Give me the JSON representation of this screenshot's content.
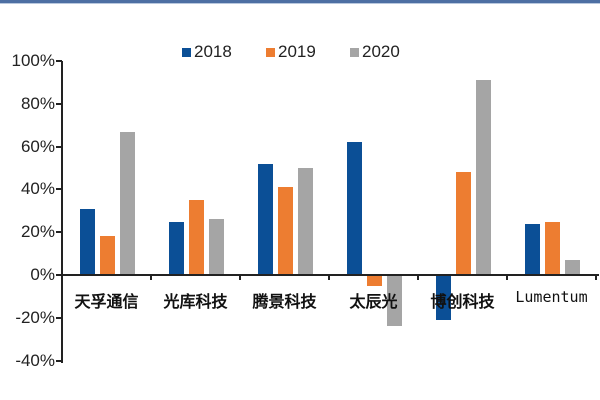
{
  "chart_data": {
    "type": "bar",
    "title": "",
    "xlabel": "",
    "ylabel": "",
    "ylim": [
      -0.4,
      1.0
    ],
    "yticks": [
      "100%",
      "80%",
      "60%",
      "40%",
      "20%",
      "0%",
      "-20%",
      "-40%"
    ],
    "ytick_values": [
      1.0,
      0.8,
      0.6,
      0.4,
      0.2,
      0.0,
      -0.2,
      -0.4
    ],
    "categories": [
      "天孚通信",
      "光库科技",
      "腾景科技",
      "太辰光",
      "博创科技",
      "Lumentum"
    ],
    "series": [
      {
        "name": "2018",
        "color": "#0b4f96",
        "values": [
          0.31,
          0.25,
          0.52,
          0.62,
          -0.21,
          0.24
        ]
      },
      {
        "name": "2019",
        "color": "#ed7d31",
        "values": [
          0.18,
          0.35,
          0.41,
          -0.05,
          0.48,
          0.25
        ]
      },
      {
        "name": "2020",
        "color": "#a5a5a5",
        "values": [
          0.67,
          0.26,
          0.5,
          -0.24,
          0.91,
          0.07
        ]
      }
    ],
    "legend_position": "top",
    "grid": false
  },
  "legend": {
    "items": [
      {
        "label": "2018",
        "color": "#0b4f96"
      },
      {
        "label": "2019",
        "color": "#ed7d31"
      },
      {
        "label": "2020",
        "color": "#a5a5a5"
      }
    ]
  }
}
